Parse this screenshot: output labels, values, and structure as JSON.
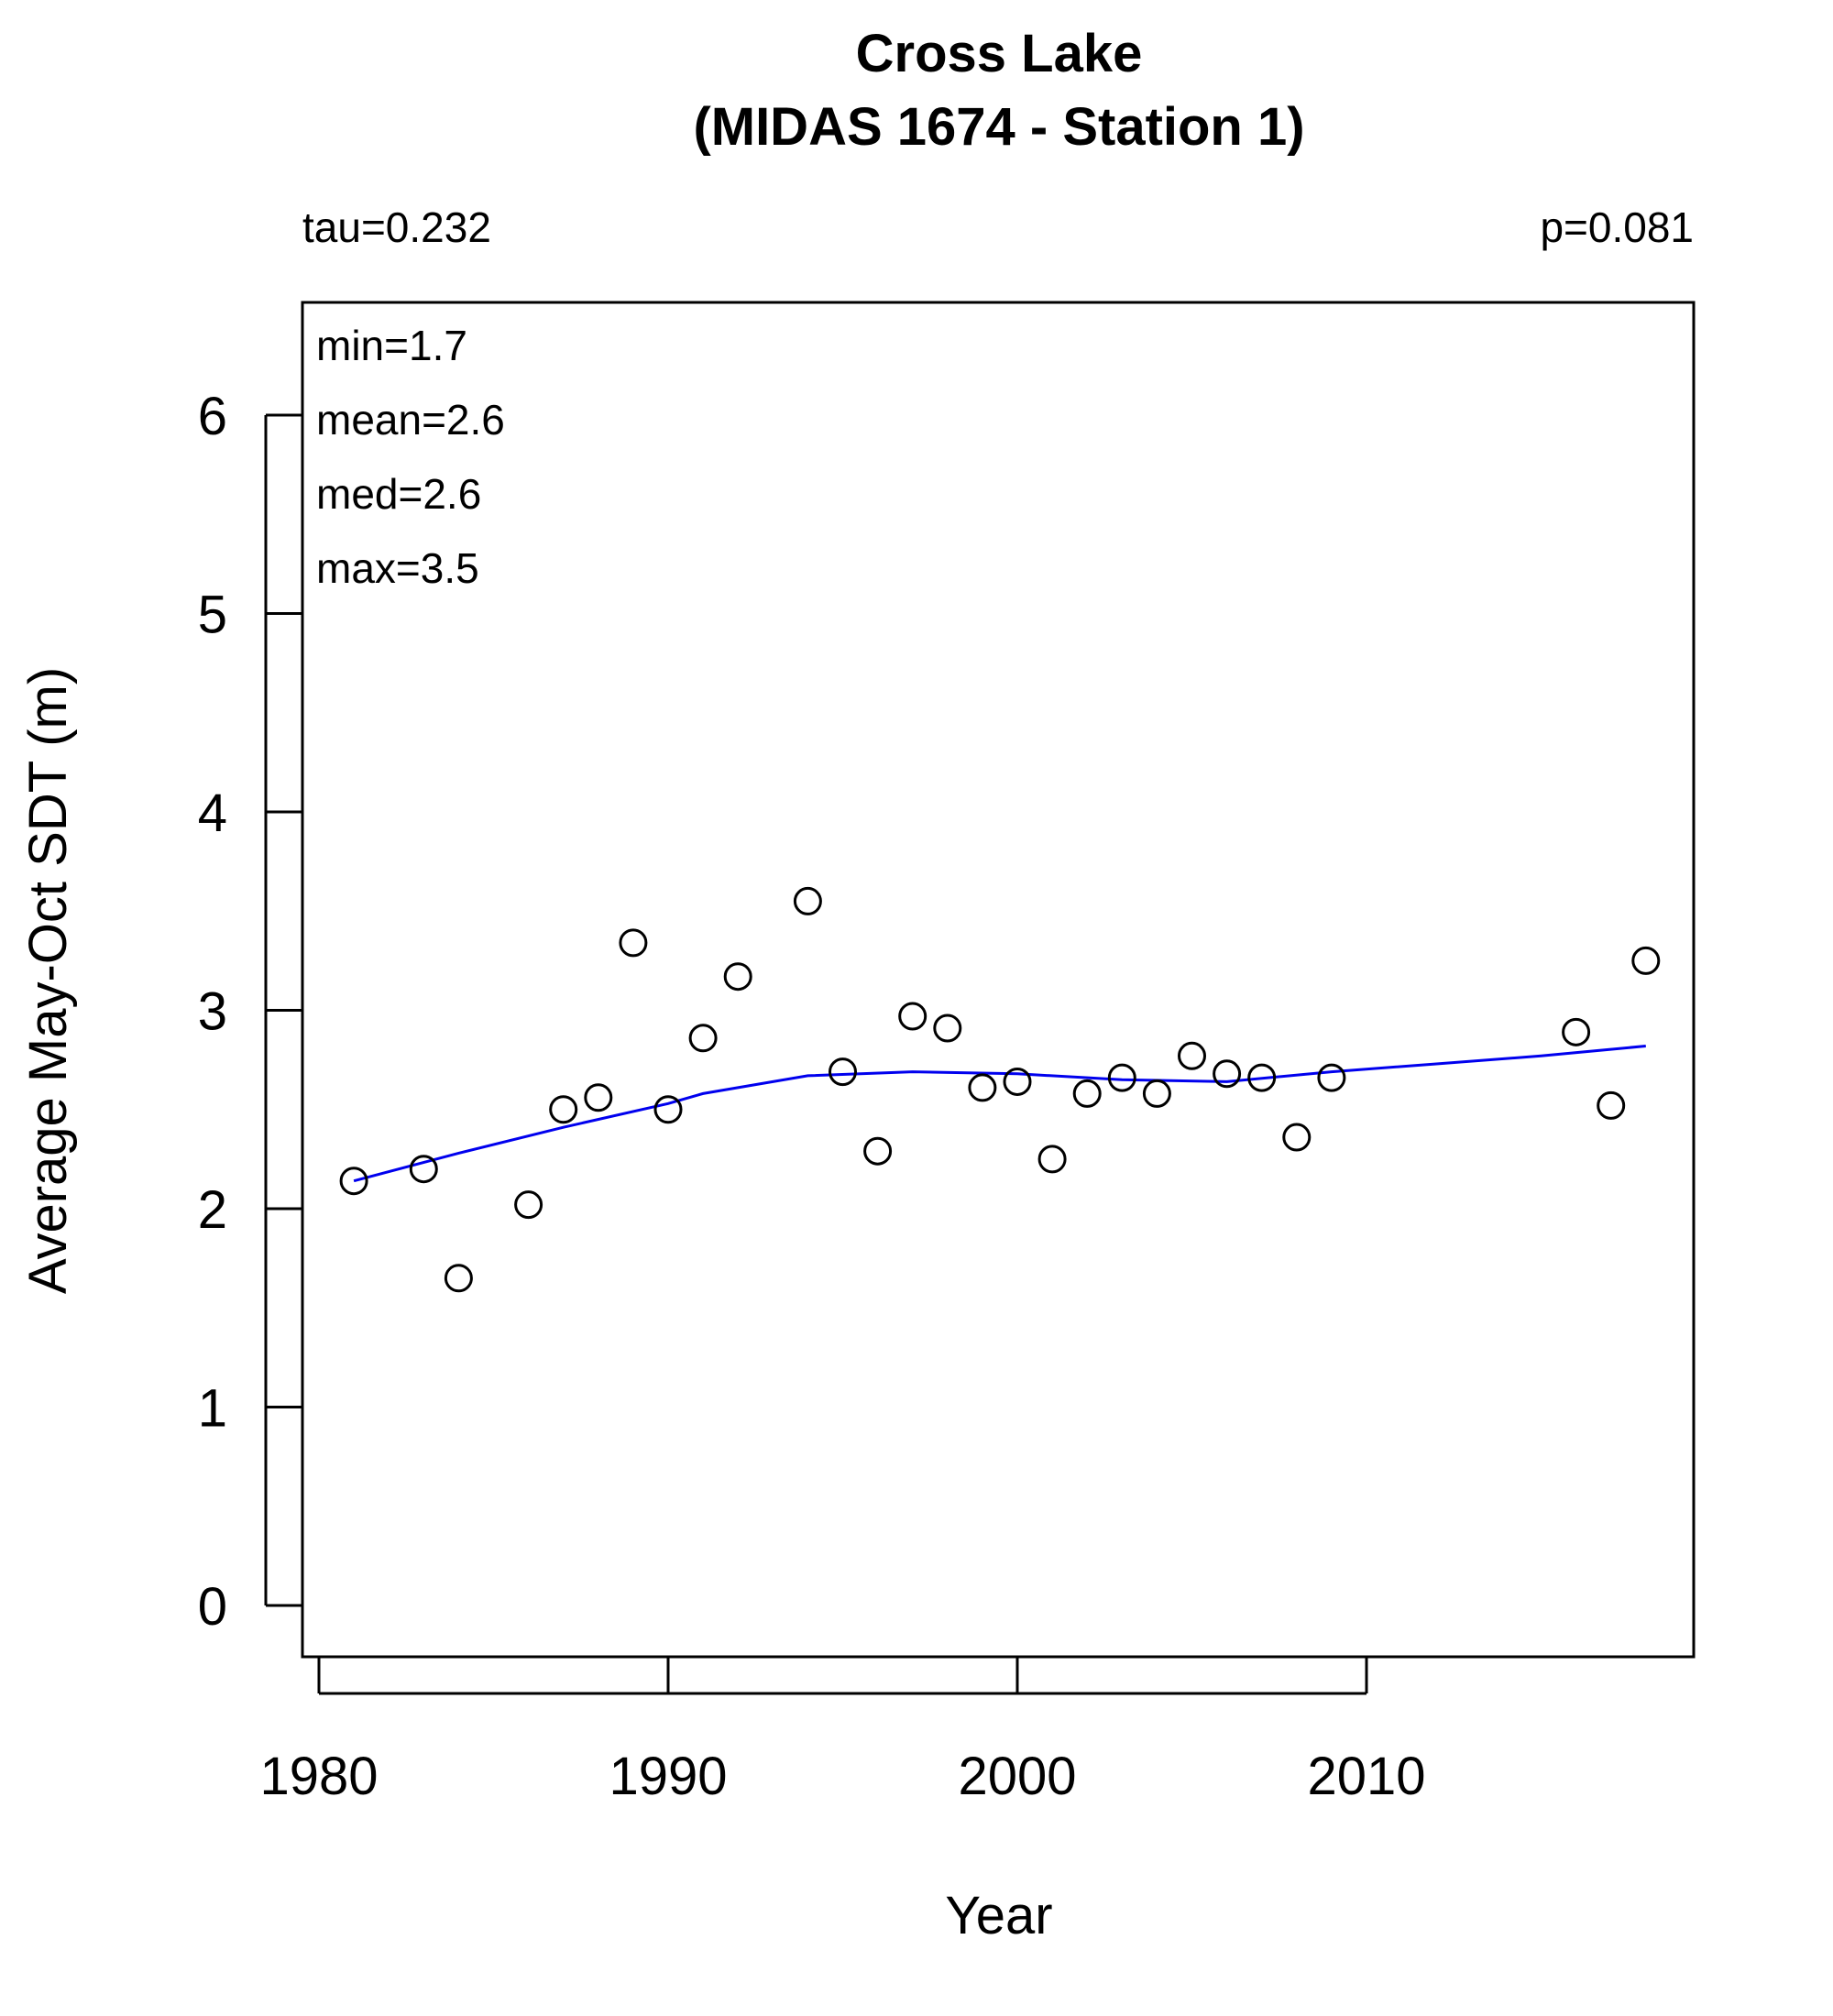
{
  "chart_data": {
    "type": "scatter",
    "title": "Cross Lake",
    "subtitle": "(MIDAS 1674 - Station 1)",
    "xlabel": "Year",
    "ylabel": "Average May-Oct SDT (m)",
    "xlim": [
      1980,
      2020
    ],
    "ylim": [
      0,
      6.5
    ],
    "xticks": [
      1980,
      1990,
      2000,
      2010
    ],
    "yticks": [
      0,
      1,
      2,
      3,
      4,
      5,
      6
    ],
    "tau_label": "tau=0.232",
    "p_label": "p=0.081",
    "stats": {
      "min": "min=1.7",
      "mean": "mean=2.6",
      "med": "med=2.6",
      "max": "max=3.5"
    },
    "grid": false,
    "points": [
      {
        "x": 1981,
        "y": 2.14
      },
      {
        "x": 1983,
        "y": 2.2
      },
      {
        "x": 1984,
        "y": 1.65
      },
      {
        "x": 1986,
        "y": 2.02
      },
      {
        "x": 1987,
        "y": 2.5
      },
      {
        "x": 1988,
        "y": 2.56
      },
      {
        "x": 1989,
        "y": 3.34
      },
      {
        "x": 1990,
        "y": 2.5
      },
      {
        "x": 1991,
        "y": 2.86
      },
      {
        "x": 1992,
        "y": 3.17
      },
      {
        "x": 1994,
        "y": 3.55
      },
      {
        "x": 1995,
        "y": 2.69
      },
      {
        "x": 1996,
        "y": 2.29
      },
      {
        "x": 1997,
        "y": 2.97
      },
      {
        "x": 1998,
        "y": 2.91
      },
      {
        "x": 1999,
        "y": 2.61
      },
      {
        "x": 2000,
        "y": 2.64
      },
      {
        "x": 2001,
        "y": 2.25
      },
      {
        "x": 2002,
        "y": 2.58
      },
      {
        "x": 2003,
        "y": 2.66
      },
      {
        "x": 2004,
        "y": 2.58
      },
      {
        "x": 2005,
        "y": 2.77
      },
      {
        "x": 2006,
        "y": 2.68
      },
      {
        "x": 2007,
        "y": 2.66
      },
      {
        "x": 2008,
        "y": 2.36
      },
      {
        "x": 2009,
        "y": 2.66
      },
      {
        "x": 2016,
        "y": 2.89
      },
      {
        "x": 2017,
        "y": 2.52
      },
      {
        "x": 2018,
        "y": 3.25
      }
    ],
    "trend_line": {
      "color": "#0000ee",
      "points": [
        {
          "x": 1981,
          "y": 2.14
        },
        {
          "x": 1984,
          "y": 2.28
        },
        {
          "x": 1987,
          "y": 2.41
        },
        {
          "x": 1990,
          "y": 2.53
        },
        {
          "x": 1991,
          "y": 2.58
        },
        {
          "x": 1994,
          "y": 2.67
        },
        {
          "x": 1997,
          "y": 2.69
        },
        {
          "x": 2000,
          "y": 2.68
        },
        {
          "x": 2003,
          "y": 2.65
        },
        {
          "x": 2006,
          "y": 2.64
        },
        {
          "x": 2009,
          "y": 2.69
        },
        {
          "x": 2012,
          "y": 2.73
        },
        {
          "x": 2015,
          "y": 2.77
        },
        {
          "x": 2018,
          "y": 2.82
        }
      ]
    },
    "point_color": "#000000"
  }
}
